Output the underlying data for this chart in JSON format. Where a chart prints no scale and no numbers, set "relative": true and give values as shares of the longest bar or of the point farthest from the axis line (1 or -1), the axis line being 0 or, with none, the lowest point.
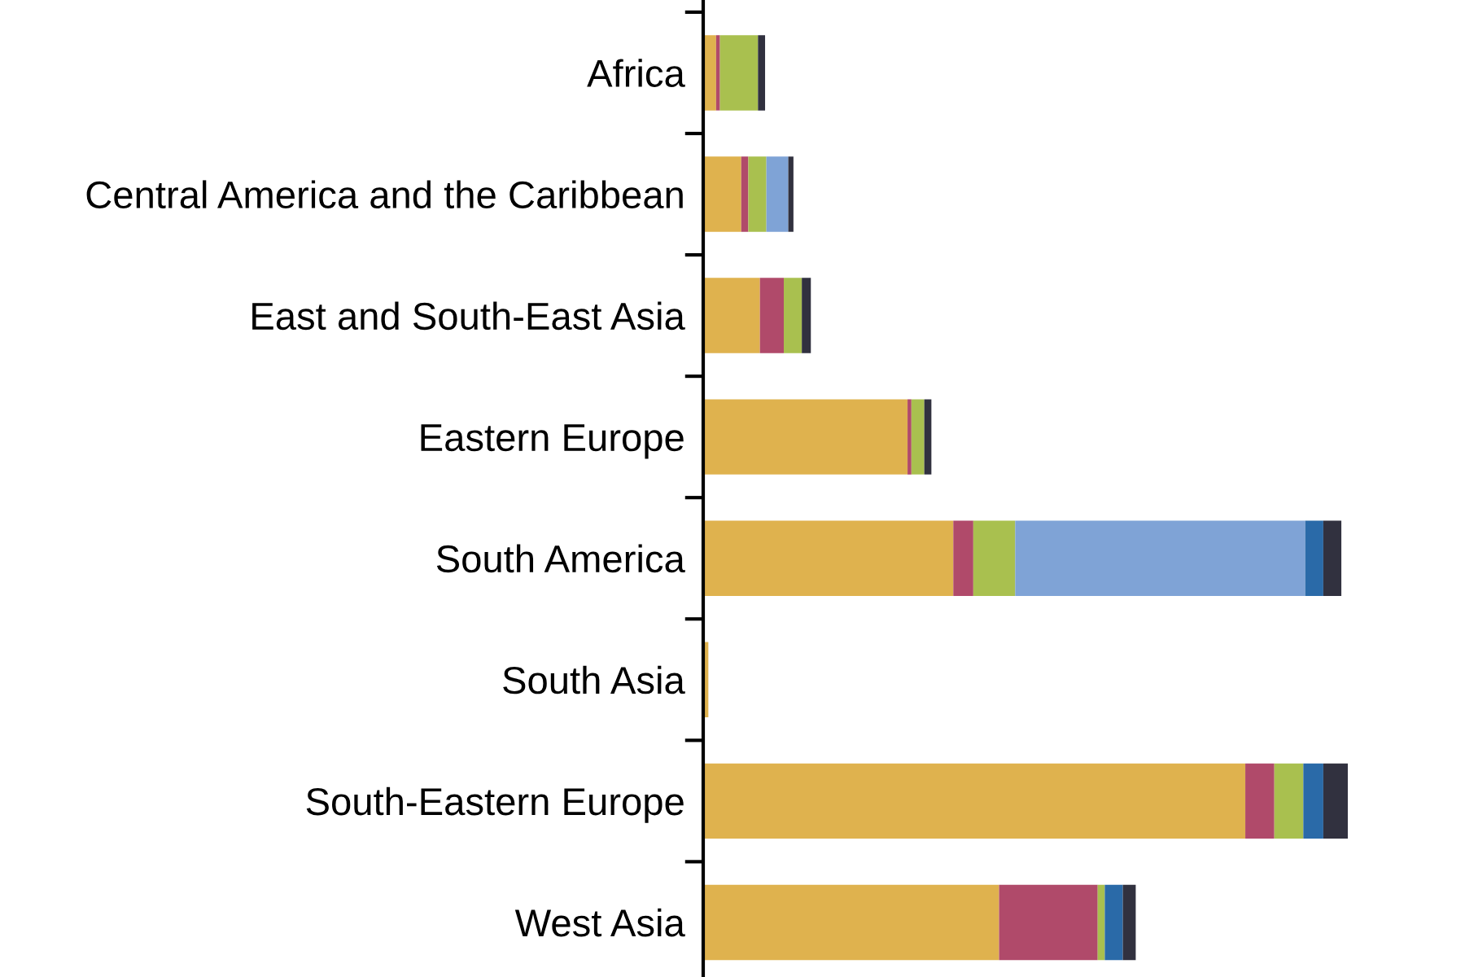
{
  "chart_data": {
    "type": "bar",
    "orientation": "horizontal",
    "stacked": true,
    "relative": true,
    "grid": false,
    "categories": [
      "Africa",
      "Central America and the Caribbean",
      "East and South-East Asia",
      "Eastern Europe",
      "South America",
      "South Asia",
      "South-Eastern Europe",
      "West Asia"
    ],
    "series": [
      {
        "color": "#dfb24e",
        "values": [
          0.02,
          0.059,
          0.088,
          0.317,
          0.388,
          0.008,
          0.841,
          0.459
        ]
      },
      {
        "color": "#b04a6a",
        "values": [
          0.006,
          0.011,
          0.037,
          0.006,
          0.031,
          0,
          0.045,
          0.153
        ]
      },
      {
        "color": "#a9c04f",
        "values": [
          0.059,
          0.028,
          0.028,
          0.02,
          0.065,
          0,
          0.045,
          0.011
        ]
      },
      {
        "color": "#7fa3d6",
        "values": [
          0,
          0.034,
          0,
          0,
          0.45,
          0,
          0,
          0
        ]
      },
      {
        "color": "#2a6aa8",
        "values": [
          0,
          0,
          0,
          0,
          0.028,
          0,
          0.031,
          0.028
        ]
      },
      {
        "color": "#31313f",
        "values": [
          0.011,
          0.008,
          0.014,
          0.011,
          0.028,
          0,
          0.038,
          0.02
        ]
      }
    ]
  }
}
